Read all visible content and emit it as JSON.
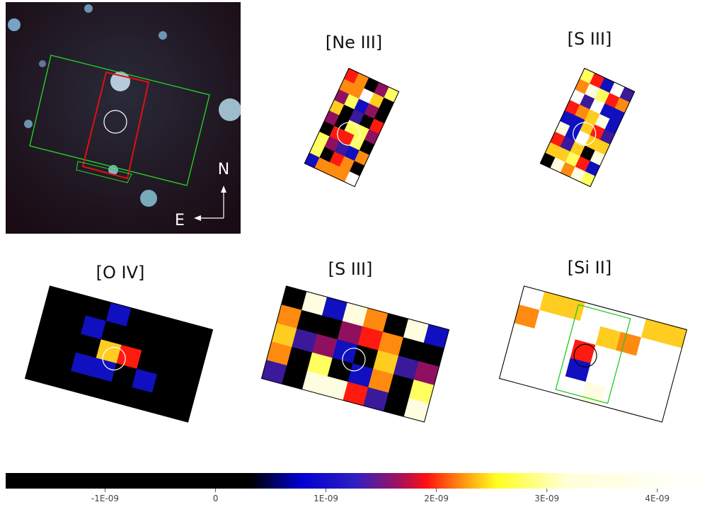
{
  "panels": [
    {
      "title": "[Ne III]"
    },
    {
      "title": "[S III]"
    },
    {
      "title": "[O IV]"
    },
    {
      "title": "[S III]"
    },
    {
      "title": "[Si II]"
    }
  ],
  "compass": {
    "north": "N",
    "east": "E"
  },
  "colorbar": {
    "lim": [
      -1.9e-09,
      4.45e-09
    ],
    "ticks": [
      {
        "value": -1e-09,
        "label": "-1E-09"
      },
      {
        "value": 0,
        "label": "0"
      },
      {
        "value": 1e-09,
        "label": "1E-09"
      },
      {
        "value": 2e-09,
        "label": "2E-09"
      },
      {
        "value": 3e-09,
        "label": "3E-09"
      },
      {
        "value": 4e-09,
        "label": "4E-09"
      }
    ]
  }
}
